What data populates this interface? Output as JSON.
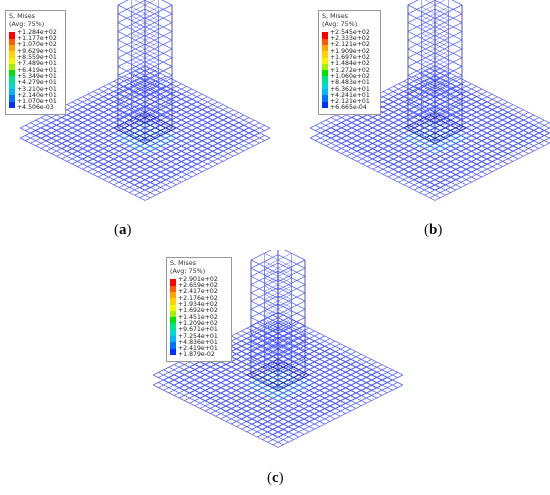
{
  "panels": [
    {
      "caption_open": "(",
      "caption_letter": "a",
      "caption_close": ")",
      "legend": {
        "title": "S, Mises",
        "subtitle": "(Avg: 75%)",
        "values": [
          "+1.284e+02",
          "+1.177e+02",
          "+1.070e+02",
          "+9.629e+01",
          "+8.559e+01",
          "+7.489e+01",
          "+6.419e+01",
          "+5.349e+01",
          "+4.279e+01",
          "+3.210e+01",
          "+2.140e+01",
          "+1.070e+01",
          "+4.506e-03"
        ]
      }
    },
    {
      "caption_open": "(",
      "caption_letter": "b",
      "caption_close": ")",
      "legend": {
        "title": "S, Mises",
        "subtitle": "(Avg: 75%)",
        "values": [
          "+2.545e+02",
          "+2.333e+02",
          "+2.121e+02",
          "+1.909e+02",
          "+1.697e+02",
          "+1.484e+02",
          "+1.272e+02",
          "+1.060e+02",
          "+8.483e+01",
          "+6.362e+01",
          "+4.241e+01",
          "+2.121e+01",
          "+6.665e-04"
        ]
      }
    },
    {
      "caption_open": "(",
      "caption_letter": "c",
      "caption_close": ")",
      "legend": {
        "title": "S, Mises",
        "subtitle": "(Avg: 75%)",
        "values": [
          "+2.901e+02",
          "+2.659e+02",
          "+2.417e+02",
          "+2.176e+02",
          "+1.934e+02",
          "+1.692e+02",
          "+1.451e+02",
          "+1.209e+02",
          "+9.671e+01",
          "+7.254e+01",
          "+4.836e+01",
          "+2.419e+01",
          "+1.879e-02"
        ]
      }
    }
  ],
  "colors": {
    "contour": [
      "#ff0000",
      "#ff5a00",
      "#ffa500",
      "#ffd200",
      "#f5f500",
      "#a0f000",
      "#00e100",
      "#00e18c",
      "#00d7d7",
      "#00b4ff",
      "#0073ff",
      "#0032ff",
      "#0000c8"
    ],
    "mesh": "#4f5cff",
    "mesh_dark": "#1f2aa8",
    "hot": "#1fd0e0"
  }
}
